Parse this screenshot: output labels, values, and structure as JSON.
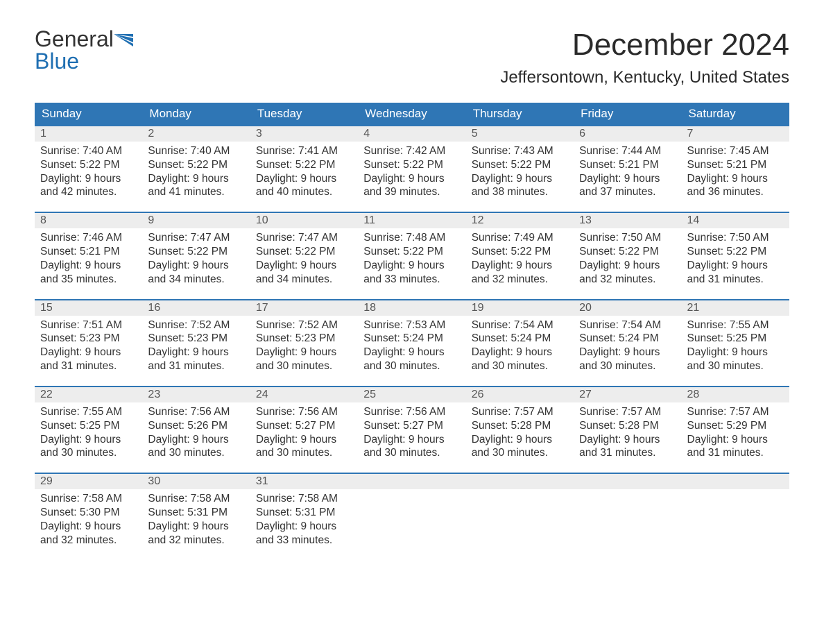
{
  "logo": {
    "word1": "General",
    "word2": "Blue"
  },
  "title": "December 2024",
  "location": "Jeffersontown, Kentucky, United States",
  "colors": {
    "header_bg": "#2f76b5",
    "header_text": "#ffffff",
    "daynum_bg": "#ededed",
    "row_border": "#2f76b5",
    "body_text": "#333333",
    "logo_blue": "#1f6fb2"
  },
  "day_headers": [
    "Sunday",
    "Monday",
    "Tuesday",
    "Wednesday",
    "Thursday",
    "Friday",
    "Saturday"
  ],
  "weeks": [
    [
      {
        "n": "1",
        "sr": "Sunrise: 7:40 AM",
        "ss": "Sunset: 5:22 PM",
        "d1": "Daylight: 9 hours",
        "d2": "and 42 minutes."
      },
      {
        "n": "2",
        "sr": "Sunrise: 7:40 AM",
        "ss": "Sunset: 5:22 PM",
        "d1": "Daylight: 9 hours",
        "d2": "and 41 minutes."
      },
      {
        "n": "3",
        "sr": "Sunrise: 7:41 AM",
        "ss": "Sunset: 5:22 PM",
        "d1": "Daylight: 9 hours",
        "d2": "and 40 minutes."
      },
      {
        "n": "4",
        "sr": "Sunrise: 7:42 AM",
        "ss": "Sunset: 5:22 PM",
        "d1": "Daylight: 9 hours",
        "d2": "and 39 minutes."
      },
      {
        "n": "5",
        "sr": "Sunrise: 7:43 AM",
        "ss": "Sunset: 5:22 PM",
        "d1": "Daylight: 9 hours",
        "d2": "and 38 minutes."
      },
      {
        "n": "6",
        "sr": "Sunrise: 7:44 AM",
        "ss": "Sunset: 5:21 PM",
        "d1": "Daylight: 9 hours",
        "d2": "and 37 minutes."
      },
      {
        "n": "7",
        "sr": "Sunrise: 7:45 AM",
        "ss": "Sunset: 5:21 PM",
        "d1": "Daylight: 9 hours",
        "d2": "and 36 minutes."
      }
    ],
    [
      {
        "n": "8",
        "sr": "Sunrise: 7:46 AM",
        "ss": "Sunset: 5:21 PM",
        "d1": "Daylight: 9 hours",
        "d2": "and 35 minutes."
      },
      {
        "n": "9",
        "sr": "Sunrise: 7:47 AM",
        "ss": "Sunset: 5:22 PM",
        "d1": "Daylight: 9 hours",
        "d2": "and 34 minutes."
      },
      {
        "n": "10",
        "sr": "Sunrise: 7:47 AM",
        "ss": "Sunset: 5:22 PM",
        "d1": "Daylight: 9 hours",
        "d2": "and 34 minutes."
      },
      {
        "n": "11",
        "sr": "Sunrise: 7:48 AM",
        "ss": "Sunset: 5:22 PM",
        "d1": "Daylight: 9 hours",
        "d2": "and 33 minutes."
      },
      {
        "n": "12",
        "sr": "Sunrise: 7:49 AM",
        "ss": "Sunset: 5:22 PM",
        "d1": "Daylight: 9 hours",
        "d2": "and 32 minutes."
      },
      {
        "n": "13",
        "sr": "Sunrise: 7:50 AM",
        "ss": "Sunset: 5:22 PM",
        "d1": "Daylight: 9 hours",
        "d2": "and 32 minutes."
      },
      {
        "n": "14",
        "sr": "Sunrise: 7:50 AM",
        "ss": "Sunset: 5:22 PM",
        "d1": "Daylight: 9 hours",
        "d2": "and 31 minutes."
      }
    ],
    [
      {
        "n": "15",
        "sr": "Sunrise: 7:51 AM",
        "ss": "Sunset: 5:23 PM",
        "d1": "Daylight: 9 hours",
        "d2": "and 31 minutes."
      },
      {
        "n": "16",
        "sr": "Sunrise: 7:52 AM",
        "ss": "Sunset: 5:23 PM",
        "d1": "Daylight: 9 hours",
        "d2": "and 31 minutes."
      },
      {
        "n": "17",
        "sr": "Sunrise: 7:52 AM",
        "ss": "Sunset: 5:23 PM",
        "d1": "Daylight: 9 hours",
        "d2": "and 30 minutes."
      },
      {
        "n": "18",
        "sr": "Sunrise: 7:53 AM",
        "ss": "Sunset: 5:24 PM",
        "d1": "Daylight: 9 hours",
        "d2": "and 30 minutes."
      },
      {
        "n": "19",
        "sr": "Sunrise: 7:54 AM",
        "ss": "Sunset: 5:24 PM",
        "d1": "Daylight: 9 hours",
        "d2": "and 30 minutes."
      },
      {
        "n": "20",
        "sr": "Sunrise: 7:54 AM",
        "ss": "Sunset: 5:24 PM",
        "d1": "Daylight: 9 hours",
        "d2": "and 30 minutes."
      },
      {
        "n": "21",
        "sr": "Sunrise: 7:55 AM",
        "ss": "Sunset: 5:25 PM",
        "d1": "Daylight: 9 hours",
        "d2": "and 30 minutes."
      }
    ],
    [
      {
        "n": "22",
        "sr": "Sunrise: 7:55 AM",
        "ss": "Sunset: 5:25 PM",
        "d1": "Daylight: 9 hours",
        "d2": "and 30 minutes."
      },
      {
        "n": "23",
        "sr": "Sunrise: 7:56 AM",
        "ss": "Sunset: 5:26 PM",
        "d1": "Daylight: 9 hours",
        "d2": "and 30 minutes."
      },
      {
        "n": "24",
        "sr": "Sunrise: 7:56 AM",
        "ss": "Sunset: 5:27 PM",
        "d1": "Daylight: 9 hours",
        "d2": "and 30 minutes."
      },
      {
        "n": "25",
        "sr": "Sunrise: 7:56 AM",
        "ss": "Sunset: 5:27 PM",
        "d1": "Daylight: 9 hours",
        "d2": "and 30 minutes."
      },
      {
        "n": "26",
        "sr": "Sunrise: 7:57 AM",
        "ss": "Sunset: 5:28 PM",
        "d1": "Daylight: 9 hours",
        "d2": "and 30 minutes."
      },
      {
        "n": "27",
        "sr": "Sunrise: 7:57 AM",
        "ss": "Sunset: 5:28 PM",
        "d1": "Daylight: 9 hours",
        "d2": "and 31 minutes."
      },
      {
        "n": "28",
        "sr": "Sunrise: 7:57 AM",
        "ss": "Sunset: 5:29 PM",
        "d1": "Daylight: 9 hours",
        "d2": "and 31 minutes."
      }
    ],
    [
      {
        "n": "29",
        "sr": "Sunrise: 7:58 AM",
        "ss": "Sunset: 5:30 PM",
        "d1": "Daylight: 9 hours",
        "d2": "and 32 minutes."
      },
      {
        "n": "30",
        "sr": "Sunrise: 7:58 AM",
        "ss": "Sunset: 5:31 PM",
        "d1": "Daylight: 9 hours",
        "d2": "and 32 minutes."
      },
      {
        "n": "31",
        "sr": "Sunrise: 7:58 AM",
        "ss": "Sunset: 5:31 PM",
        "d1": "Daylight: 9 hours",
        "d2": "and 33 minutes."
      },
      null,
      null,
      null,
      null
    ]
  ]
}
